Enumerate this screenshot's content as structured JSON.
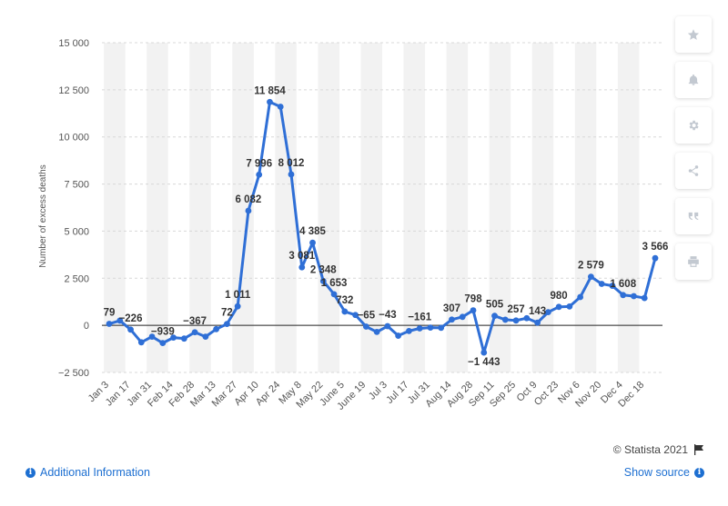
{
  "chart_data": {
    "type": "line",
    "title": "",
    "xlabel": "",
    "ylabel": "Number of excess deaths",
    "ylim": [
      -2500,
      15000
    ],
    "yticks": [
      -2500,
      0,
      2500,
      5000,
      7500,
      10000,
      12500,
      15000
    ],
    "ytick_labels": [
      "−2 500",
      "0",
      "2 500",
      "5 000",
      "7 500",
      "10 000",
      "12 500",
      "15 000"
    ],
    "grid": true,
    "x": [
      "Jan 3",
      "Jan 10",
      "Jan 17",
      "Jan 24",
      "Jan 31",
      "Feb 7",
      "Feb 14",
      "Feb 21",
      "Feb 28",
      "Mar 6",
      "Mar 13",
      "Mar 20",
      "Mar 27",
      "Apr 3",
      "Apr 10",
      "Apr 17",
      "Apr 24",
      "May 1",
      "May 8",
      "May 15",
      "May 22",
      "May 29",
      "June 5",
      "June 12",
      "June 19",
      "June 26",
      "Jul 3",
      "Jul 10",
      "Jul 17",
      "Jul 24",
      "Jul 31",
      "Aug 7",
      "Aug 14",
      "Aug 21",
      "Aug 28",
      "Sep 4",
      "Sep 11",
      "Sep 18",
      "Sep 25",
      "Oct 2",
      "Oct 9",
      "Oct 16",
      "Oct 23",
      "Oct 30",
      "Nov 6",
      "Nov 13",
      "Nov 20",
      "Nov 27",
      "Dec 4",
      "Dec 11",
      "Dec 18",
      "Dec 25"
    ],
    "x_tick_labels": [
      "Jan 3",
      "Jan 17",
      "Jan 31",
      "Feb 14",
      "Feb 28",
      "Mar 13",
      "Mar 27",
      "Apr 10",
      "Apr 24",
      "May 8",
      "May 22",
      "June 5",
      "June 19",
      "Jul 3",
      "Jul 17",
      "Jul 31",
      "Aug 14",
      "Aug 28",
      "Sep 11",
      "Sep 25",
      "Oct 9",
      "Oct 23",
      "Nov 6",
      "Nov 20",
      "Dec 4",
      "Dec 18"
    ],
    "series": [
      {
        "name": "",
        "color": "#2f6fd6",
        "values": [
          79,
          250,
          -226,
          -900,
          -600,
          -939,
          -650,
          -700,
          -367,
          -600,
          -200,
          72,
          1011,
          6082,
          7996,
          11854,
          11600,
          8012,
          3081,
          4385,
          2348,
          1653,
          732,
          550,
          -65,
          -350,
          -43,
          -550,
          -300,
          -161,
          -120,
          -130,
          307,
          450,
          798,
          -1443,
          505,
          300,
          257,
          380,
          143,
          700,
          980,
          1000,
          1500,
          2579,
          2200,
          2100,
          1608,
          1550,
          1450,
          3566
        ],
        "labels": {
          "0": "79",
          "2": "−226",
          "5": "−939",
          "8": "−367",
          "11": "72",
          "12": "1 011",
          "13": "6 082",
          "14": "7 996",
          "15": "11 854",
          "17": "8 012",
          "18": "3 081",
          "19": "4 385",
          "20": "2 348",
          "21": "1 653",
          "22": "732",
          "24": "−65",
          "26": "−43",
          "29": "−161",
          "32": "307",
          "34": "798",
          "35": "−1 443",
          "36": "505",
          "38": "257",
          "40": "143",
          "42": "980",
          "45": "2 579",
          "48": "1 608",
          "51": "3 566"
        }
      }
    ]
  },
  "toolbar": {
    "icons": [
      "star-icon",
      "bell-icon",
      "gear-icon",
      "share-icon",
      "quote-icon",
      "print-icon"
    ]
  },
  "footer": {
    "copyright": "© Statista 2021",
    "additional_info": "Additional Information",
    "show_source": "Show source"
  },
  "colors": {
    "line": "#2f6fd6",
    "link": "#1d6fd1",
    "band": "#f2f2f2"
  }
}
